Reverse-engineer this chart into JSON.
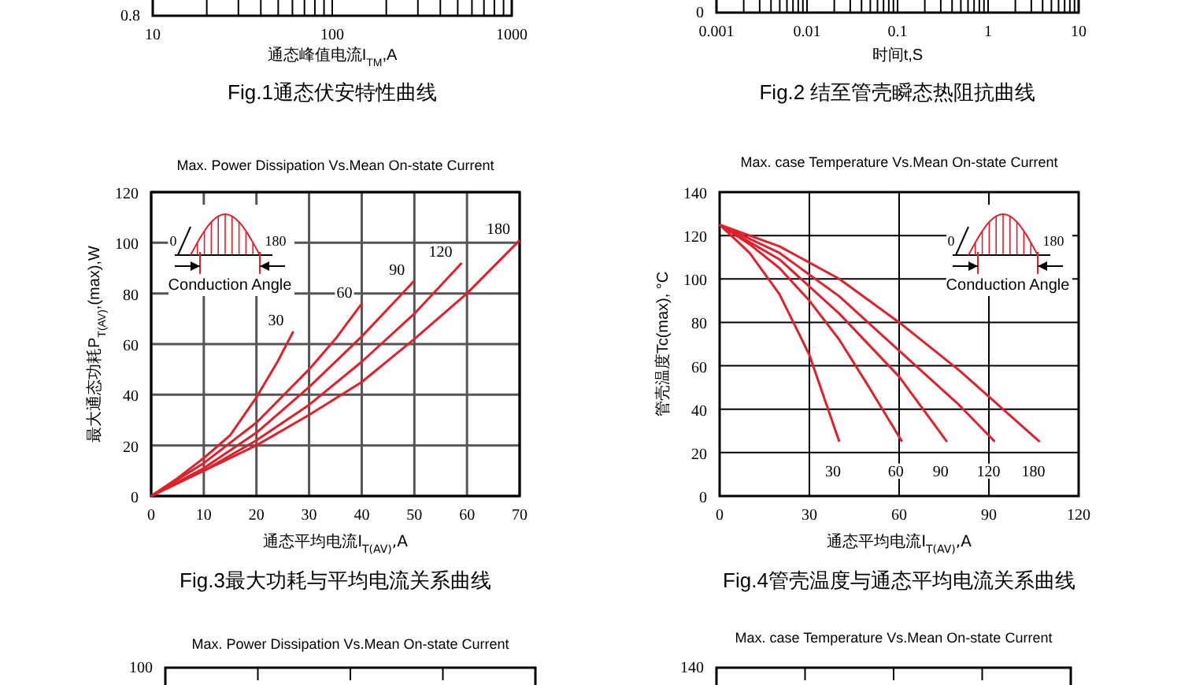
{
  "chart_data": [
    {
      "type": "other",
      "xlabel": "通态峰值电流I$_{TM}$,A",
      "annotations": [
        "Fig.1通态伏安特性曲线",
        "0.8",
        "10",
        "100",
        "1000"
      ]
    },
    {
      "type": "other",
      "xlabel": "时间t,S",
      "annotations": [
        "Fig.2 结至管壳瞬态热阻抗曲线",
        "0",
        "0.001",
        "0.01",
        "0.1",
        "1",
        "10"
      ]
    },
    {
      "type": "line",
      "title": "Max. Power Dissipation Vs.Mean On-state Current",
      "xlabel": "通态平均电流I$_{T(AV)}$,A",
      "ylabel": "最大通态功耗P$_{T(AV)}$,(max),W",
      "xlim": [
        0,
        70
      ],
      "ylim": [
        0,
        120
      ],
      "xticks": [
        0,
        10,
        20,
        30,
        40,
        50,
        60,
        70
      ],
      "yticks": [
        0,
        20,
        40,
        60,
        80,
        100,
        120
      ],
      "grid": true,
      "annotations": [
        "Fig.3最大功耗与平均电流关系曲线",
        "0",
        "180",
        "Conduction Angle"
      ],
      "series": [
        {
          "name": "30",
          "color": "#e0202a",
          "x": [
            0,
            5,
            10,
            15,
            20,
            24,
            27
          ],
          "values": [
            0,
            7,
            15,
            24,
            39,
            53,
            65
          ]
        },
        {
          "name": "60",
          "color": "#e0202a",
          "x": [
            0,
            10,
            20,
            30,
            35,
            40
          ],
          "values": [
            0,
            13,
            29,
            50,
            62,
            76
          ]
        },
        {
          "name": "90",
          "color": "#e0202a",
          "x": [
            0,
            10,
            20,
            30,
            40,
            50
          ],
          "values": [
            0,
            11,
            25,
            43,
            63,
            85
          ]
        },
        {
          "name": "120",
          "color": "#e0202a",
          "x": [
            0,
            10,
            20,
            30,
            40,
            50,
            59
          ],
          "values": [
            0,
            10,
            22,
            36,
            53,
            72,
            92
          ]
        },
        {
          "name": "180",
          "color": "#e0202a",
          "x": [
            0,
            10,
            20,
            30,
            40,
            50,
            60,
            70
          ],
          "values": [
            0,
            10,
            20,
            32,
            45,
            62,
            80,
            101
          ]
        }
      ]
    },
    {
      "type": "line",
      "title": "Max. case Temperature Vs.Mean On-state Current",
      "xlabel": "通态平均电流I$_{T(AV)}$,A",
      "ylabel": "管壳温度Tc(max), °C",
      "xlim": [
        0,
        120
      ],
      "ylim": [
        0,
        140
      ],
      "xticks": [
        0,
        30,
        60,
        90,
        120
      ],
      "yticks": [
        0,
        20,
        40,
        60,
        80,
        100,
        120,
        140
      ],
      "grid": true,
      "annotations": [
        "Fig.4管壳温度与通态平均电流关系曲线",
        "0",
        "180",
        "Conduction Angle"
      ],
      "series": [
        {
          "name": "30",
          "color": "#e0202a",
          "x": [
            0,
            10,
            20,
            30,
            35,
            40
          ],
          "values": [
            125,
            112,
            93,
            65,
            45,
            25
          ]
        },
        {
          "name": "60",
          "color": "#e0202a",
          "x": [
            0,
            10,
            20,
            30,
            40,
            50,
            61
          ],
          "values": [
            125,
            116,
            105,
            90,
            72,
            50,
            25
          ]
        },
        {
          "name": "90",
          "color": "#e0202a",
          "x": [
            0,
            20,
            40,
            60,
            76
          ],
          "values": [
            125,
            109,
            84,
            55,
            25
          ]
        },
        {
          "name": "120",
          "color": "#e0202a",
          "x": [
            0,
            20,
            40,
            60,
            80,
            92
          ],
          "values": [
            125,
            112,
            92,
            67,
            42,
            25
          ]
        },
        {
          "name": "180",
          "color": "#e0202a",
          "x": [
            0,
            20,
            40,
            60,
            80,
            107
          ],
          "values": [
            125,
            115,
            100,
            80,
            58,
            25
          ]
        }
      ]
    },
    {
      "type": "other",
      "title": "Max. Power Dissipation Vs.Mean On-state Current",
      "annotations": [
        "100"
      ]
    },
    {
      "type": "other",
      "title": "Max. case Temperature Vs.Mean On-state Current",
      "annotations": [
        "140"
      ]
    }
  ]
}
